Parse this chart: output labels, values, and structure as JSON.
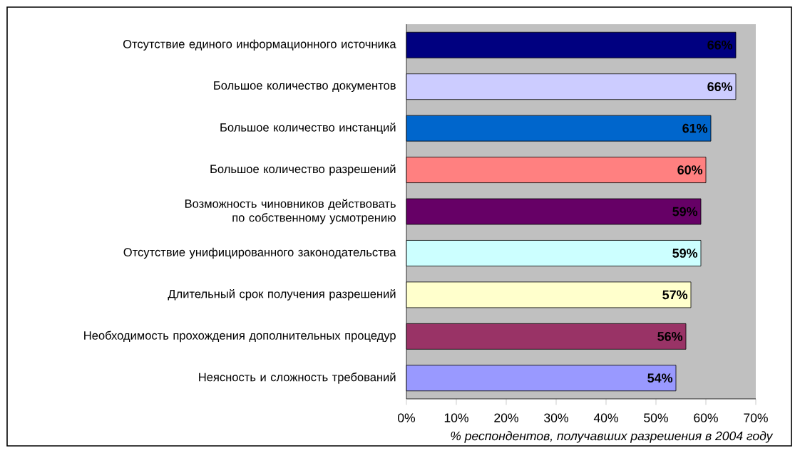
{
  "chart_data": {
    "type": "bar",
    "orientation": "horizontal",
    "xlabel": "% респондентов, получавших разрешения в 2004 году",
    "categories": [
      "Отсутствие единого информационного источника",
      "Большое количество документов",
      "Большое количество инстанций",
      "Большое количество разрешений",
      "Возможность чиновников действовать по собственному усмотрению",
      "Отсутствие унифицированного законодательства",
      "Длительный срок получения разрешений",
      "Необходимость прохождения дополнительных процедур",
      "Неясность и сложность требований"
    ],
    "values": [
      66,
      66,
      61,
      60,
      59,
      59,
      57,
      56,
      54
    ],
    "value_labels": [
      "66%",
      "66%",
      "61%",
      "60%",
      "59%",
      "59%",
      "57%",
      "56%",
      "54%"
    ],
    "colors": [
      "#000080",
      "#ccccff",
      "#0066cc",
      "#ff8080",
      "#660066",
      "#ccffff",
      "#ffffcc",
      "#993366",
      "#9999ff"
    ],
    "xlim": [
      0,
      70
    ],
    "xticks": [
      {
        "value": 0,
        "label": "0%"
      },
      {
        "value": 10,
        "label": "10%"
      },
      {
        "value": 20,
        "label": "20%"
      },
      {
        "value": 30,
        "label": "30%"
      },
      {
        "value": 40,
        "label": "40%"
      },
      {
        "value": 50,
        "label": "50%"
      },
      {
        "value": 60,
        "label": "60%"
      },
      {
        "value": 70,
        "label": "70%"
      }
    ]
  }
}
